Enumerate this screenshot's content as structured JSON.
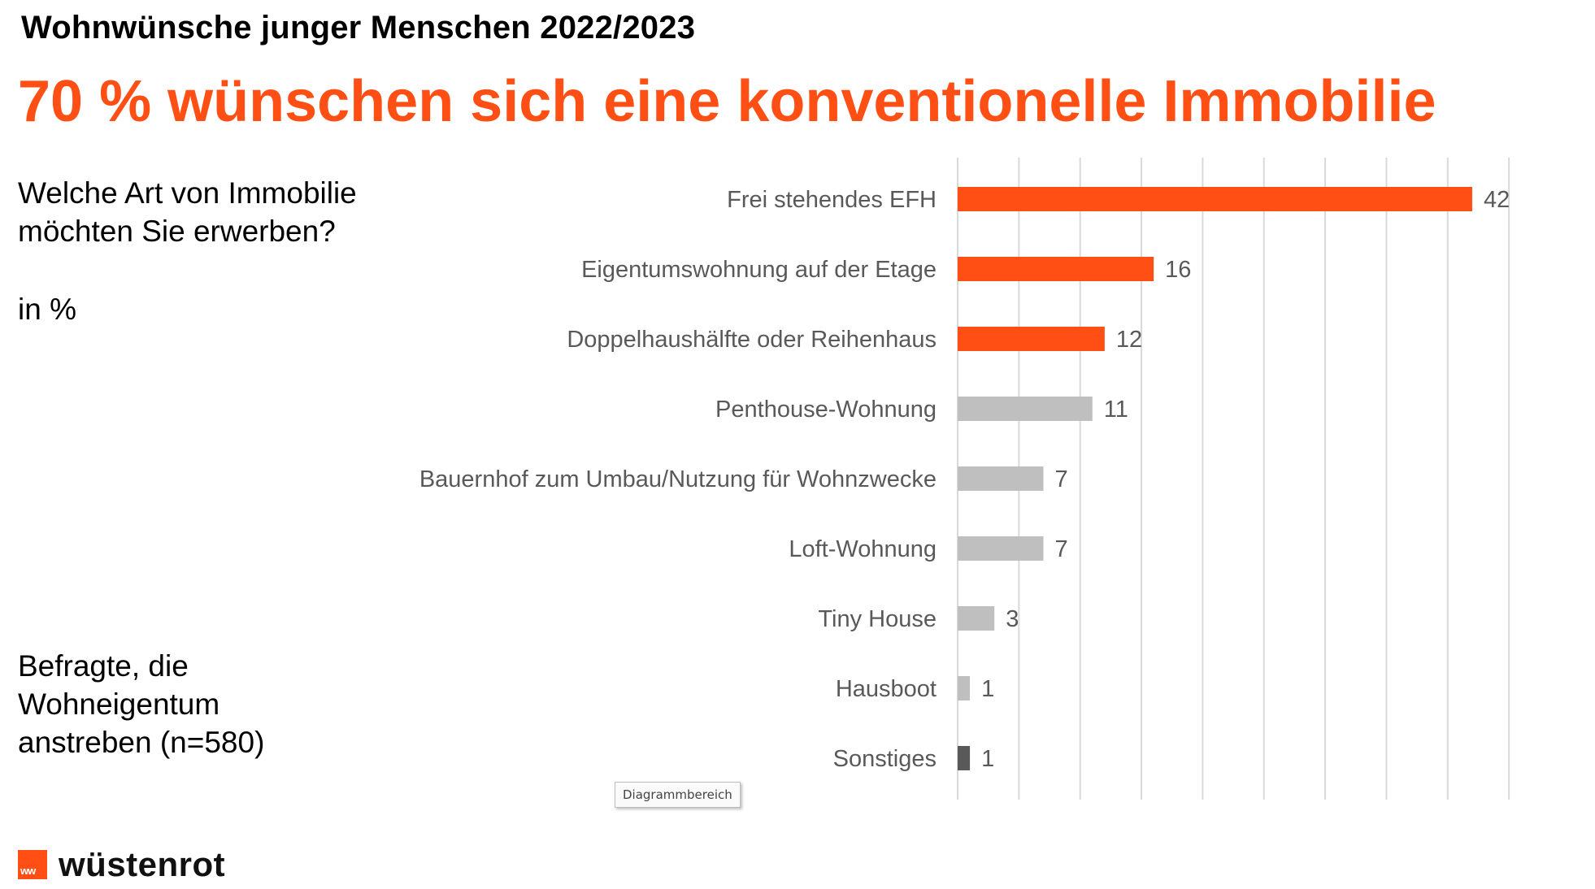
{
  "header": {
    "supertitle": "Wohnwünsche junger Menschen 2022/2023",
    "headline": "70 % wünschen sich eine konventionelle Immobilie"
  },
  "sidebar": {
    "question": "Welche Art von Immobilie möchten Sie erwerben?",
    "unit": "in %",
    "base": "Befragte, die Wohneigentum anstreben (n=580)"
  },
  "tooltip": {
    "label": "Diagrammbereich"
  },
  "logo": {
    "mark_text": "ww",
    "name": "wüstenrot"
  },
  "colors": {
    "highlight": "#ff4f14",
    "neutral": "#bfbfbf",
    "other": "#595959",
    "grid": "#d9d9d9",
    "label": "#595959"
  },
  "chart_data": {
    "type": "bar",
    "orientation": "horizontal",
    "categories": [
      "Frei stehendes EFH",
      "Eigentumswohnung auf der Etage",
      "Doppelhaushälfte oder Reihenhaus",
      "Penthouse-Wohnung",
      "Bauernhof zum Umbau/Nutzung für Wohnzwecke",
      "Loft-Wohnung",
      "Tiny House",
      "Hausboot",
      "Sonstiges"
    ],
    "values": [
      42,
      16,
      12,
      11,
      7,
      7,
      3,
      1,
      1
    ],
    "bar_colors": [
      "highlight",
      "highlight",
      "highlight",
      "neutral",
      "neutral",
      "neutral",
      "neutral",
      "neutral",
      "other"
    ],
    "xlim": [
      0,
      45
    ],
    "grid": true,
    "grid_step": 5,
    "data_labels": true,
    "legend": "none"
  }
}
